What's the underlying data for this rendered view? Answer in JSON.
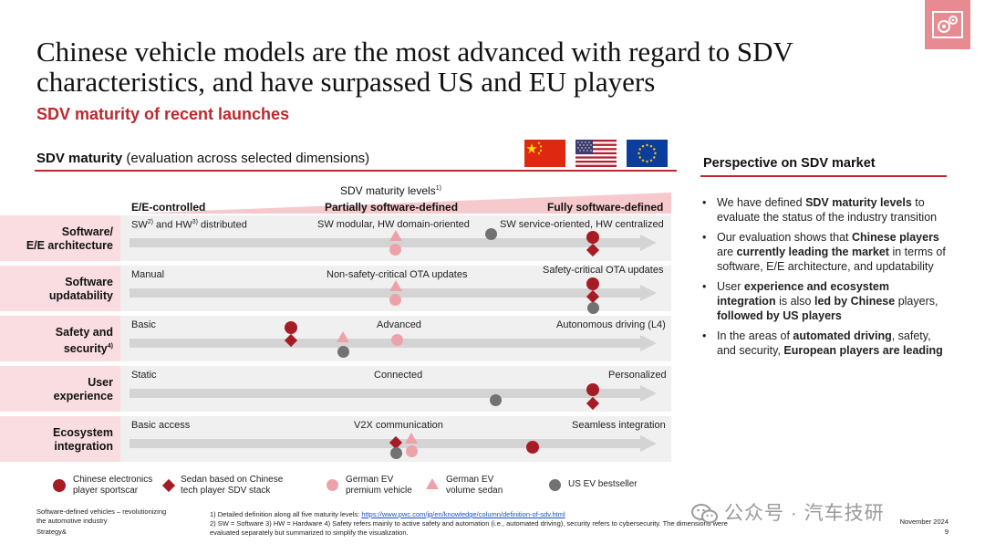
{
  "header": {
    "title": "Chinese vehicle models are the most advanced with regard to SDV characteristics, and have surpassed US and EU players",
    "subtitle": "SDV maturity of recent launches",
    "logo_icon": "gears-icon"
  },
  "chart": {
    "heading_bold": "SDV maturity",
    "heading_rest": " (evaluation across selected dimensions)",
    "flags": [
      "china-flag",
      "usa-flag",
      "eu-flag"
    ],
    "levels_title": "SDV maturity levels",
    "levels_footnote": "1)",
    "levels": [
      "E/E-controlled",
      "Partially software-defined",
      "Fully software-defined"
    ],
    "rows": [
      {
        "label_line1": "Software/",
        "label_line2": "E/E architecture",
        "low": "SW",
        "low_sup1": "2)",
        "low_mid": " and HW",
        "low_sup2": "3)",
        "low_end": " distributed",
        "mid": "SW modular, HW domain-oriented",
        "high": "SW service-oriented, HW centralized"
      },
      {
        "label_line1": "Software",
        "label_line2": "updatability",
        "low": "Manual",
        "mid": "Non-safety-critical OTA updates",
        "high": "Safety-critical OTA updates"
      },
      {
        "label_line1": "Safety and",
        "label_line2": "security",
        "label_sup": "4)",
        "low": "Basic",
        "mid": "Advanced",
        "high": "Autonomous driving (L4)"
      },
      {
        "label_line1": "User",
        "label_line2": "experience",
        "low": "Static",
        "mid": "Connected",
        "high": "Personalized"
      },
      {
        "label_line1": "Ecosystem",
        "label_line2": "integration",
        "low": "Basic access",
        "mid": "V2X communication",
        "high": "Seamless integration"
      }
    ],
    "legend": [
      {
        "marker": "dark-red-circle",
        "text": "Chinese electronics player sportscar"
      },
      {
        "marker": "dark-red-diamond",
        "text": "Sedan based on Chinese tech player SDV stack"
      },
      {
        "marker": "pink-circle",
        "text": "German EV premium vehicle"
      },
      {
        "marker": "pink-triangle",
        "text": "German EV volume sedan"
      },
      {
        "marker": "grey-circle",
        "text": "US EV bestseller"
      }
    ],
    "colors": {
      "accent": "#c0272d",
      "dark_red": "#a51c24",
      "pink": "#eda2aa",
      "grey": "#727272",
      "row_bg": "#f0f0f0",
      "label_bg": "#f9dde0"
    }
  },
  "perspective": {
    "heading": "Perspective on SDV market",
    "bullets": [
      [
        {
          "t": "We have defined ",
          "b": false
        },
        {
          "t": "SDV maturity levels",
          "b": true
        },
        {
          "t": " to evaluate the status of the industry transition",
          "b": false
        }
      ],
      [
        {
          "t": "Our evaluation shows that ",
          "b": false
        },
        {
          "t": "Chinese players",
          "b": true
        },
        {
          "t": " are ",
          "b": false
        },
        {
          "t": "currently leading the market",
          "b": true
        },
        {
          "t": " in terms of software, E/E architecture, and updatability",
          "b": false
        }
      ],
      [
        {
          "t": "User ",
          "b": false
        },
        {
          "t": "experience and ecosystem integration",
          "b": true
        },
        {
          "t": " is also ",
          "b": false
        },
        {
          "t": "led by Chinese",
          "b": true
        },
        {
          "t": " players, ",
          "b": false
        },
        {
          "t": "followed by US players",
          "b": true
        }
      ],
      [
        {
          "t": "In the areas of ",
          "b": false
        },
        {
          "t": "automated driving",
          "b": true
        },
        {
          "t": ", safety, and security, ",
          "b": false
        },
        {
          "t": "European players are leading",
          "b": true
        }
      ]
    ]
  },
  "footer": {
    "left_line1": "Software-defined vehicles – revolutionizing",
    "left_line2": "the automotive industry",
    "left_line3": "Strategy&",
    "note1_prefix": "1) Detailed definition along all five maturity levels: ",
    "note1_link": "https://www.pwc.com/jp/en/knowledge/column/definition-of-sdv.html",
    "note2": "2) SW = Software   3) HW = Hardware   4) Safety refers mainly to active safety and automation (i.e., automated driving), security refers to cybersecurity. The dimensions were evaluated separately but summarized to simplify the visualization.",
    "date": "November 2024",
    "page": "9",
    "watermark": "公众号 · 汽车技研"
  }
}
